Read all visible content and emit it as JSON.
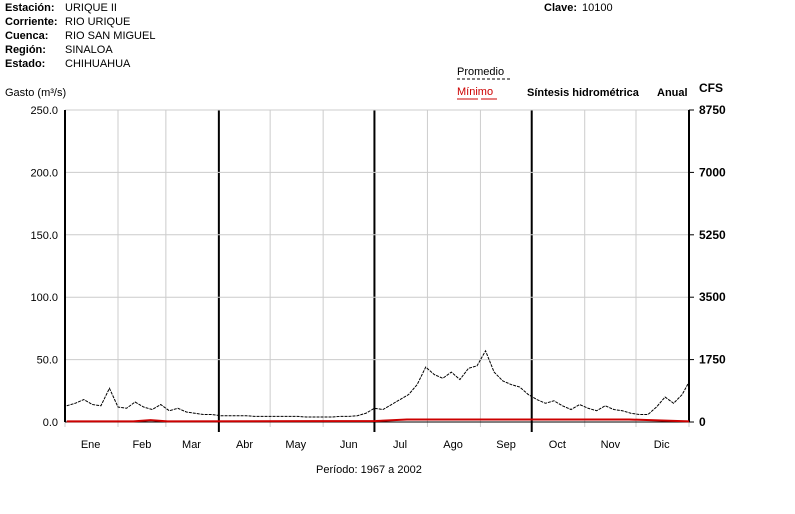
{
  "header": {
    "rows": [
      [
        "Estación:",
        "URIQUE II"
      ],
      [
        "Corriente:",
        "RIO URIQUE"
      ],
      [
        "Cuenca:",
        "RIO SAN MIGUEL"
      ],
      [
        "Región:",
        "SINALOA"
      ],
      [
        "Estado:",
        "CHIHUAHUA"
      ]
    ],
    "clave_label": "Clave:",
    "clave": "10100"
  },
  "chart_data": {
    "type": "line",
    "title": "Síntesis hidrométrica",
    "subtitle": "Anual",
    "ylabel": "Gasto (m³/s)",
    "y2label": "CFS",
    "period": "Período:  1967 a 2002",
    "ylim": [
      0,
      250
    ],
    "yticks": [
      {
        "value": 0,
        "label": "0.0"
      },
      {
        "value": 50,
        "label": "50.0"
      },
      {
        "value": 100,
        "label": "100.0"
      },
      {
        "value": 150,
        "label": "150.0"
      },
      {
        "value": 200,
        "label": "200.0"
      },
      {
        "value": 250,
        "label": "250.0"
      }
    ],
    "y2lim": [
      0,
      8750
    ],
    "y2ticks": [
      0,
      1750,
      3500,
      5250,
      7000,
      8750
    ],
    "xlim": [
      0,
      365
    ],
    "xticks": [
      {
        "value": 15,
        "label": "Ene"
      },
      {
        "value": 45,
        "label": "Feb"
      },
      {
        "value": 74,
        "label": "Mar"
      },
      {
        "value": 105,
        "label": "Abr"
      },
      {
        "value": 135,
        "label": "May"
      },
      {
        "value": 166,
        "label": "Jun"
      },
      {
        "value": 196,
        "label": "Jul"
      },
      {
        "value": 227,
        "label": "Ago"
      },
      {
        "value": 258,
        "label": "Sep"
      },
      {
        "value": 288,
        "label": "Oct"
      },
      {
        "value": 319,
        "label": "Nov"
      },
      {
        "value": 349,
        "label": "Dic"
      }
    ],
    "xgrid": [
      0,
      31,
      59,
      90,
      120,
      151,
      181,
      212,
      243,
      273,
      304,
      334,
      365
    ],
    "series": [
      {
        "name": "Promedio",
        "color": "#000000",
        "dash": true,
        "x": [
          1,
          6,
          11,
          16,
          21,
          26,
          31,
          36,
          41,
          46,
          51,
          56,
          61,
          66,
          71,
          76,
          81,
          86,
          91,
          96,
          101,
          106,
          111,
          116,
          121,
          126,
          131,
          136,
          141,
          146,
          151,
          156,
          161,
          166,
          171,
          176,
          181,
          186,
          191,
          196,
          201,
          206,
          211,
          216,
          221,
          226,
          231,
          236,
          241,
          246,
          251,
          256,
          261,
          266,
          271,
          276,
          281,
          286,
          291,
          296,
          301,
          306,
          311,
          316,
          321,
          326,
          331,
          336,
          341,
          346,
          351,
          356,
          361,
          365
        ],
        "values": [
          13,
          15,
          18,
          14,
          13,
          27,
          12,
          11,
          16,
          12,
          10,
          14,
          9,
          11,
          8,
          7,
          6,
          6,
          5,
          5,
          5,
          5,
          4.5,
          4.5,
          4.5,
          4.5,
          4.5,
          4.5,
          4,
          4,
          4,
          4,
          4.5,
          4.5,
          5,
          7,
          11,
          10,
          14,
          18,
          22,
          30,
          44,
          38,
          35,
          40,
          34,
          43,
          45,
          57,
          40,
          33,
          30,
          28,
          22,
          18,
          15,
          17,
          13,
          10,
          14,
          11,
          9,
          13,
          10,
          9,
          7,
          6,
          6,
          12,
          20,
          15,
          22,
          32
        ]
      },
      {
        "name": "Mínimo",
        "color": "#cc0000",
        "dash": false,
        "x": [
          1,
          40,
          50,
          60,
          182,
          200,
          330,
          365
        ],
        "values": [
          0.5,
          0.5,
          1.5,
          0.5,
          0.8,
          2,
          2,
          0.5
        ]
      }
    ]
  }
}
